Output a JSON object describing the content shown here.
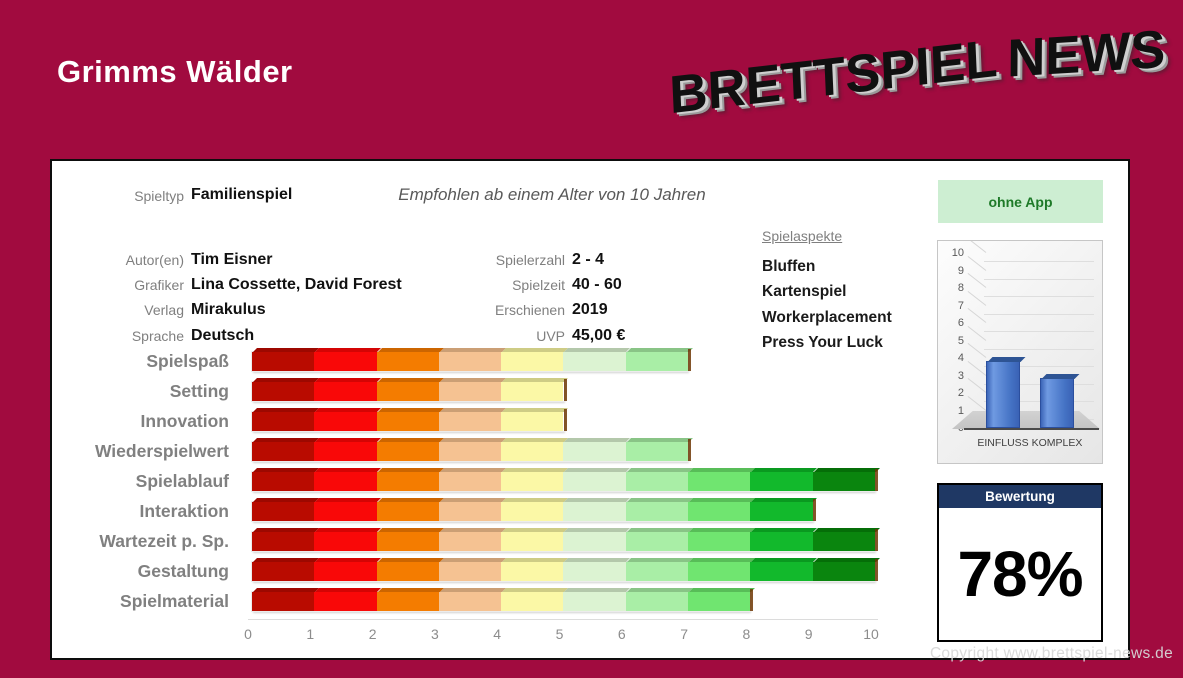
{
  "page": {
    "title": "Grimms Wälder",
    "logo_word1": "BRETTSPIEL",
    "logo_word2": "NEWS",
    "copyright": "Copyright www.brettspiel-news.de",
    "background_color": "#a10b3f"
  },
  "card": {
    "spieltyp_label": "Spieltyp",
    "spieltyp_value": "Familienspiel",
    "age_note": "Empfohlen ab einem Alter von 10 Jahren",
    "app_badge": {
      "label": "ohne App",
      "bg": "#cdeed2",
      "text_color": "#1e7a28"
    },
    "info_left": [
      {
        "label": "Autor(en)",
        "value": "Tim Eisner"
      },
      {
        "label": "Grafiker",
        "value": "Lina Cossette, David Forest"
      },
      {
        "label": "Verlag",
        "value": "Mirakulus"
      },
      {
        "label": "Sprache",
        "value": "Deutsch"
      }
    ],
    "info_right": [
      {
        "label": "Spielerzahl",
        "value": "2 - 4"
      },
      {
        "label": "Spielzeit",
        "value": "40 - 60"
      },
      {
        "label": "Erschienen",
        "value": "2019"
      },
      {
        "label": "UVP",
        "value": "45,00 €"
      }
    ],
    "aspects": {
      "header": "Spielaspekte",
      "items": [
        "Bluffen",
        "Kartenspiel",
        "Workerplacement",
        "Press Your Luck"
      ]
    },
    "rating_box": {
      "header": "Bewertung",
      "value": "78%",
      "header_bg": "#1f3864"
    }
  },
  "chart_data": [
    {
      "type": "bar",
      "name": "einfluss-komplex-chart",
      "style": "3d-column",
      "categories": [
        "EINFLUSS",
        "KOMPLEX"
      ],
      "values": [
        4,
        3
      ],
      "ylim": [
        0,
        10
      ],
      "yticks": [
        10,
        9,
        8,
        7,
        6,
        5,
        4,
        3,
        2,
        1,
        0
      ],
      "bar_color": "#4472c4",
      "grid": true,
      "legend": "none"
    },
    {
      "type": "bar",
      "name": "category-ratings-chart",
      "orientation": "horizontal",
      "categories": [
        "Spielspaß",
        "Setting",
        "Innovation",
        "Wiederspielwert",
        "Spielablauf",
        "Interaktion",
        "Wartezeit p. Sp.",
        "Gestaltung",
        "Spielmaterial"
      ],
      "values": [
        7,
        5,
        5,
        7,
        10,
        9,
        10,
        10,
        8
      ],
      "xlim": [
        0,
        10
      ],
      "xticks": [
        0,
        1,
        2,
        3,
        4,
        5,
        6,
        7,
        8,
        9,
        10
      ],
      "segment_colors": [
        "#b90b00",
        "#f90808",
        "#f47c00",
        "#f5c292",
        "#fbf8a6",
        "#dcf3d2",
        "#a9eea6",
        "#70e570",
        "#12b92c",
        "#0a850e"
      ],
      "grid": false,
      "legend": "none"
    }
  ]
}
